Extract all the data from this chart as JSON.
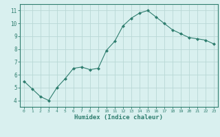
{
  "x": [
    0,
    1,
    2,
    3,
    4,
    5,
    6,
    7,
    8,
    9,
    10,
    11,
    12,
    13,
    14,
    15,
    16,
    17,
    18,
    19,
    20,
    21,
    22,
    23
  ],
  "y": [
    5.5,
    4.9,
    4.3,
    4.0,
    5.0,
    5.7,
    6.5,
    6.6,
    6.4,
    6.5,
    7.9,
    8.6,
    9.8,
    10.4,
    10.8,
    11.0,
    10.5,
    10.0,
    9.5,
    9.2,
    8.9,
    8.8,
    8.7,
    8.4
  ],
  "line_color": "#2e7d6e",
  "marker": "D",
  "marker_size": 2.0,
  "bg_color": "#d9f0ef",
  "grid_color": "#b8d8d5",
  "xlabel": "Humidex (Indice chaleur)",
  "ylabel_ticks": [
    4,
    5,
    6,
    7,
    8,
    9,
    10,
    11
  ],
  "xlim": [
    -0.5,
    23.5
  ],
  "ylim": [
    3.5,
    11.5
  ],
  "tick_label_color": "#2e7d6e",
  "axis_color": "#2e7d6e",
  "xlabel_color": "#2e7d6e"
}
